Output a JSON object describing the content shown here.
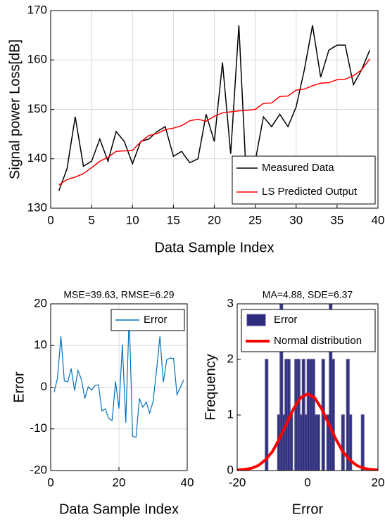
{
  "chart_data": [
    {
      "type": "line",
      "xlabel": "Data Sample Index",
      "ylabel": "Signal power Loss[dB]",
      "x": [
        1,
        2,
        3,
        4,
        5,
        6,
        7,
        8,
        9,
        10,
        11,
        12,
        13,
        14,
        15,
        16,
        17,
        18,
        19,
        20,
        21,
        22,
        23,
        24,
        25,
        26,
        27,
        28,
        29,
        30,
        31,
        32,
        33,
        34,
        35,
        36,
        37,
        38,
        39
      ],
      "series": [
        {
          "name": "Measured Data",
          "color": "#000000",
          "values": [
            133.5,
            138,
            148.5,
            138.5,
            139.5,
            144,
            139.5,
            145.5,
            143.5,
            139,
            143.5,
            144,
            145.5,
            146.5,
            140.5,
            141.5,
            139.2,
            140,
            149,
            143.5,
            159.5,
            141,
            167,
            133,
            139.5,
            148.5,
            146.5,
            149,
            146.5,
            150.5,
            158,
            167,
            156.5,
            162,
            163,
            163,
            155,
            158,
            162
          ]
        },
        {
          "name": "LS Predicted Output",
          "color": "#ff0000",
          "values": [
            134.7,
            135.8,
            136.3,
            137,
            138.2,
            139.5,
            140.3,
            141.5,
            141.6,
            141.7,
            143.4,
            144.7,
            145.1,
            145.9,
            146.2,
            146.7,
            147.7,
            148,
            147.6,
            148.6,
            149.3,
            149.5,
            149.7,
            149.8,
            150,
            151.2,
            151.3,
            152.6,
            152.7,
            153.9,
            154.1,
            154.8,
            155.3,
            155.4,
            156,
            156.1,
            156.8,
            158,
            160.2
          ]
        }
      ],
      "xlim": [
        0,
        40
      ],
      "xticks": [
        0,
        5,
        10,
        15,
        20,
        25,
        30,
        35,
        40
      ],
      "ylim": [
        130,
        170
      ],
      "yticks": [
        130,
        140,
        150,
        160,
        170
      ],
      "grid": true,
      "legend": "lower right"
    },
    {
      "type": "line",
      "title": "MSE=39.63, RMSE=6.29",
      "xlabel": "Data Sample Index",
      "ylabel": "Error",
      "x": [
        1,
        2,
        3,
        4,
        5,
        6,
        7,
        8,
        9,
        10,
        11,
        12,
        13,
        14,
        15,
        16,
        17,
        18,
        19,
        20,
        21,
        22,
        23,
        24,
        25,
        26,
        27,
        28,
        29,
        30,
        31,
        32,
        33,
        34,
        35,
        36,
        37,
        38,
        39
      ],
      "series": [
        {
          "name": "Error",
          "color": "#0072bd",
          "values": [
            -1.2,
            2.2,
            12.2,
            1.5,
            1.3,
            4.5,
            -0.8,
            4,
            1.9,
            -2.7,
            0.1,
            -0.7,
            0.4,
            0.6,
            -5.7,
            -5.2,
            -7.5,
            -8,
            1.4,
            -5.1,
            10.2,
            -8.5,
            17.3,
            -11.8,
            -12,
            -2.7,
            -4.8,
            -3.6,
            -6.2,
            -3.4,
            3.9,
            12.2,
            1.2,
            6.6,
            7,
            6.9,
            -1.8,
            0,
            1.8
          ]
        }
      ],
      "xlim": [
        0,
        40
      ],
      "xticks": [
        0,
        20,
        40
      ],
      "ylim": [
        -20,
        20
      ],
      "yticks": [
        -20,
        -10,
        0,
        10,
        20
      ],
      "grid": true,
      "legend": "upper right"
    },
    {
      "type": "histogram",
      "title": "MA=4.88, SDE=6.37",
      "xlabel": "Error",
      "ylabel": "Frequency",
      "bins": [
        -12,
        -11.3,
        -10.6,
        -9.9,
        -9.2,
        -8.5,
        -7.8,
        -7.1,
        -6.4,
        -5.7,
        -5,
        -4.3,
        -3.6,
        -2.9,
        -2.2,
        -1.5,
        -0.8,
        -0.1,
        0.6,
        1.3,
        2,
        2.7,
        3.4,
        4.1,
        4.8,
        5.5,
        6.2,
        6.9,
        7.6,
        8.3,
        9,
        9.7,
        10.4,
        11.1,
        11.8,
        12.5,
        13.2,
        13.9,
        14.6,
        15.3,
        16
      ],
      "series": [
        {
          "name": "Error",
          "color": "#2b2b80",
          "values": [
            2,
            0,
            0,
            0,
            0,
            1,
            3,
            1,
            2,
            2,
            1,
            0,
            2,
            2,
            1,
            2,
            1,
            2,
            2,
            2,
            1,
            1,
            0,
            2,
            0,
            1,
            3,
            2,
            0,
            0,
            0,
            1,
            0,
            2,
            1,
            0,
            0,
            0,
            0,
            1
          ]
        },
        {
          "name": "Normal distribution",
          "color": "#ff0000",
          "x": [
            -20,
            -18,
            -16,
            -14,
            -12,
            -10,
            -8,
            -6,
            -4,
            -2,
            0,
            2,
            4,
            6,
            8,
            10,
            12,
            14,
            16,
            18,
            20
          ],
          "values": [
            0.01,
            0.02,
            0.04,
            0.09,
            0.19,
            0.34,
            0.57,
            0.84,
            1.11,
            1.31,
            1.38,
            1.31,
            1.11,
            0.84,
            0.57,
            0.34,
            0.19,
            0.09,
            0.04,
            0.02,
            0.01
          ]
        }
      ],
      "xlim": [
        -20,
        20
      ],
      "xticks": [
        -20,
        0,
        20
      ],
      "ylim": [
        0,
        3
      ],
      "yticks": [
        0,
        1,
        2,
        3
      ],
      "grid": false,
      "legend": "upper right"
    }
  ]
}
